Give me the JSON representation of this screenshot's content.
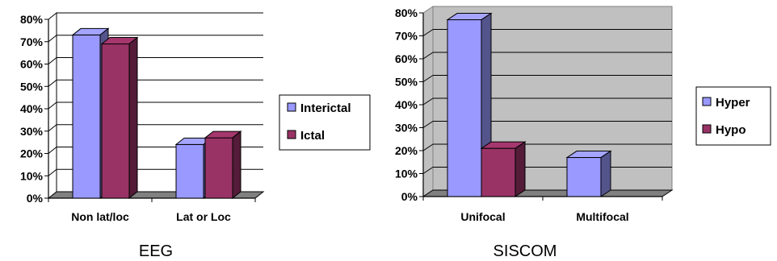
{
  "chart_data": [
    {
      "type": "bar",
      "subtitle": "EEG",
      "categories": [
        "Non lat/loc",
        "Lat or Loc"
      ],
      "series": [
        {
          "name": "Interictal",
          "values": [
            73,
            24
          ]
        },
        {
          "name": "Ictal",
          "values": [
            69,
            27
          ]
        }
      ],
      "ylim": [
        0,
        80
      ],
      "yticks": [
        "0%",
        "10%",
        "20%",
        "30%",
        "40%",
        "50%",
        "60%",
        "70%",
        "80%"
      ],
      "grid": true,
      "plot_background": "#ffffff",
      "legend_position": "right",
      "colors": {
        "Interictal": "#9999ff",
        "Ictal": "#993366"
      }
    },
    {
      "type": "bar",
      "subtitle": "SISCOM",
      "categories": [
        "Unifocal",
        "Multifocal"
      ],
      "series": [
        {
          "name": "Hyper",
          "values": [
            77,
            17
          ]
        },
        {
          "name": "Hypo",
          "values": [
            21,
            null
          ]
        }
      ],
      "ylim": [
        0,
        80
      ],
      "yticks": [
        "0%",
        "10%",
        "20%",
        "30%",
        "40%",
        "50%",
        "60%",
        "70%",
        "80%"
      ],
      "grid": true,
      "plot_background": "#c0c0c0",
      "legend_position": "right",
      "colors": {
        "Hyper": "#9999ff",
        "Hypo": "#993366"
      }
    }
  ]
}
